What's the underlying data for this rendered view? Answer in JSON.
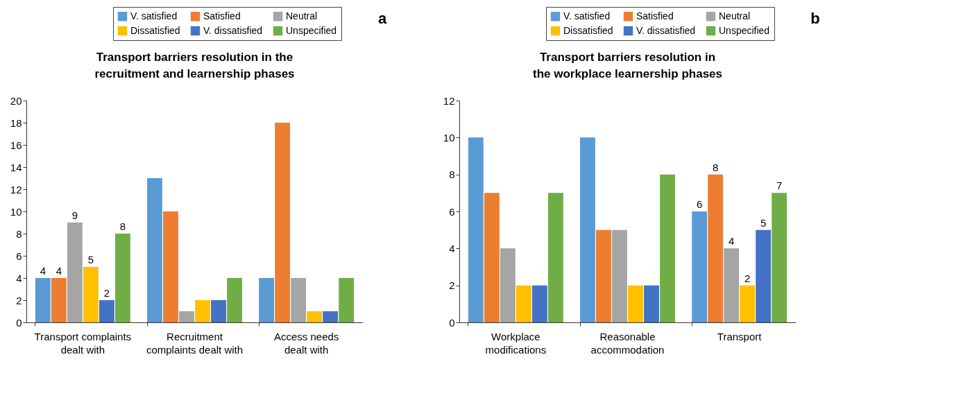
{
  "chart_data": [
    {
      "type": "bar",
      "title": "Transport barriers resolution in the recruitment and learnership phases",
      "categories": [
        "Transport complaints dealt with",
        "Recruitment complaints dealt with",
        "Access needs dealt with"
      ],
      "ylim": [
        0,
        20
      ],
      "yticks": [
        0,
        2,
        4,
        6,
        8,
        10,
        12,
        14,
        16,
        18,
        20
      ],
      "grid": false,
      "legend": "top right",
      "annotations": [
        "a"
      ],
      "series": [
        {
          "name": "V. satisfied",
          "color": "#5b9bd5",
          "values": [
            4,
            13,
            4
          ],
          "value_labels": [
            "4",
            null,
            null
          ]
        },
        {
          "name": "Satisfied",
          "color": "#ed7d31",
          "values": [
            4,
            10,
            18
          ],
          "value_labels": [
            "4",
            null,
            null
          ]
        },
        {
          "name": "Neutral",
          "color": "#a5a5a5",
          "values": [
            9,
            1,
            4
          ],
          "value_labels": [
            "9",
            null,
            null
          ]
        },
        {
          "name": "Dissatisfied",
          "color": "#ffc000",
          "values": [
            5,
            2,
            1
          ],
          "value_labels": [
            "5",
            null,
            null
          ]
        },
        {
          "name": "V. dissatisfied",
          "color": "#4472c4",
          "values": [
            2,
            2,
            1
          ],
          "value_labels": [
            "2",
            null,
            null
          ]
        },
        {
          "name": "Unspecified",
          "color": "#70ad47",
          "values": [
            8,
            4,
            4
          ],
          "value_labels": [
            "8",
            null,
            null
          ]
        }
      ]
    },
    {
      "type": "bar",
      "title": "Transport barriers resolution in the workplace learnership phases",
      "categories": [
        "Workplace modifications",
        "Reasonable accommodation",
        "Transport"
      ],
      "ylim": [
        0,
        12
      ],
      "yticks": [
        0,
        2,
        4,
        6,
        8,
        10,
        12
      ],
      "grid": false,
      "legend": "top right",
      "annotations": [
        "b"
      ],
      "series": [
        {
          "name": "V. satisfied",
          "color": "#5b9bd5",
          "values": [
            10,
            10,
            6
          ],
          "value_labels": [
            null,
            null,
            "6"
          ]
        },
        {
          "name": "Satisfied",
          "color": "#ed7d31",
          "values": [
            7,
            5,
            8
          ],
          "value_labels": [
            null,
            null,
            "8"
          ]
        },
        {
          "name": "Neutral",
          "color": "#a5a5a5",
          "values": [
            4,
            5,
            4
          ],
          "value_labels": [
            null,
            null,
            "4"
          ]
        },
        {
          "name": "Dissatisfied",
          "color": "#ffc000",
          "values": [
            2,
            2,
            2
          ],
          "value_labels": [
            null,
            null,
            "2"
          ]
        },
        {
          "name": "V. dissatisfied",
          "color": "#4472c4",
          "values": [
            2,
            2,
            5
          ],
          "value_labels": [
            null,
            null,
            "5"
          ]
        },
        {
          "name": "Unspecified",
          "color": "#70ad47",
          "values": [
            7,
            8,
            7
          ],
          "value_labels": [
            null,
            null,
            "7"
          ]
        }
      ]
    }
  ]
}
